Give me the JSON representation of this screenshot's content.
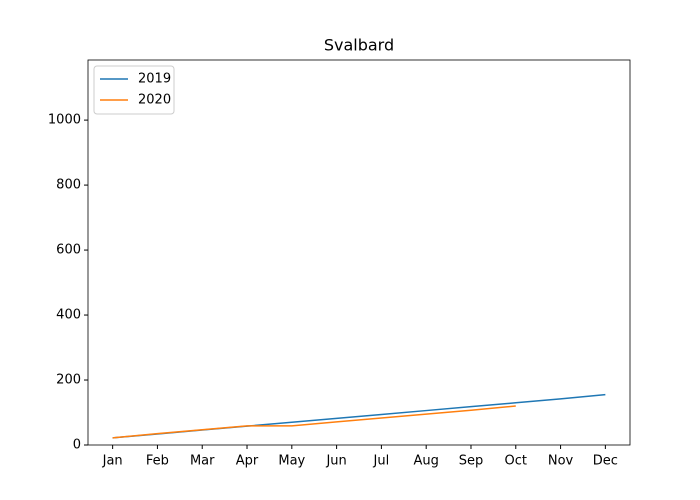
{
  "chart_data": {
    "type": "line",
    "title": "Svalbard",
    "categories": [
      "Jan",
      "Feb",
      "Mar",
      "Apr",
      "May",
      "Jun",
      "Jul",
      "Aug",
      "Sep",
      "Oct",
      "Nov",
      "Dec"
    ],
    "series": [
      {
        "name": "2019",
        "color": "#1f77b4",
        "values": [
          22,
          34,
          46,
          58,
          70,
          82,
          94,
          106,
          118,
          130,
          142,
          155
        ]
      },
      {
        "name": "2020",
        "color": "#ff7f0e",
        "values": [
          22,
          35,
          47,
          59,
          59,
          71,
          83,
          95,
          107,
          120,
          null,
          null
        ]
      }
    ],
    "ylim": [
      0,
      1185
    ],
    "yticks": [
      0,
      200,
      400,
      600,
      800,
      1000
    ],
    "grid": false,
    "legend": "upper left"
  }
}
